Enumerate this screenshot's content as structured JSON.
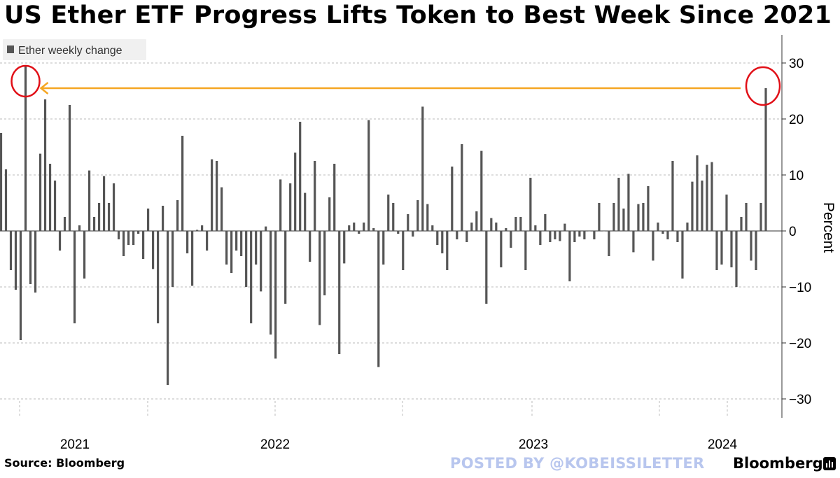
{
  "title": "US Ether ETF Progress Lifts Token to Best Week Since 2021",
  "source": "Source: Bloomberg",
  "watermark": "POSTED BY @KOBEISSILETTER",
  "brand": "Bloomberg",
  "colors": {
    "bar": "#555555",
    "grid": "#bbbbbb",
    "arrow": "#f5a623",
    "circle": "#e10f17",
    "legend_bg": "#f0f0f0",
    "watermark": "#b8c6ee"
  },
  "chart_data": {
    "type": "bar",
    "ylabel": "Percent",
    "ylim": [
      -33,
      35
    ],
    "yticks": [
      30,
      20,
      10,
      0,
      -10,
      -20,
      -30
    ],
    "grid": true,
    "legend": {
      "position": "top-left",
      "entries": [
        "Ether weekly change"
      ]
    },
    "x_axis": {
      "type": "time",
      "tick_labels": [
        "2021",
        "2022",
        "2023",
        "2024"
      ],
      "year_boundaries": [
        "2020-11",
        "2021-07",
        "2022-01",
        "2022-07",
        "2023-01",
        "2023-07",
        "2024-01"
      ]
    },
    "series": [
      {
        "name": "Ether weekly change",
        "values": [
          17.5,
          11.0,
          -7.0,
          -10.5,
          -19.5,
          29.5,
          -9.5,
          -11.0,
          13.8,
          23.5,
          12.0,
          9.0,
          -3.5,
          2.5,
          22.5,
          -16.5,
          1.0,
          -8.5,
          10.8,
          2.5,
          5.0,
          9.8,
          5.0,
          8.5,
          -1.5,
          -4.5,
          -2.5,
          -2.5,
          -0.5,
          -5.0,
          4.0,
          -6.8,
          -16.5,
          4.5,
          -27.5,
          -10.0,
          5.5,
          17.0,
          -4.0,
          -9.8,
          0.2,
          1.0,
          -3.5,
          12.8,
          12.5,
          7.8,
          -6.0,
          -7.5,
          -3.5,
          -4.5,
          -10.0,
          -16.5,
          -6.0,
          -10.8,
          0.8,
          -18.5,
          -22.8,
          9.2,
          -13.0,
          8.5,
          14.0,
          19.5,
          6.8,
          -5.5,
          12.5,
          -16.8,
          -11.5,
          6.0,
          12.0,
          -22.0,
          -5.8,
          1.0,
          1.5,
          -0.5,
          1.5,
          19.8,
          0.5,
          -24.3,
          -6.0,
          6.5,
          5.0,
          -0.5,
          -7.0,
          3.0,
          -1.0,
          5.5,
          22.2,
          4.8,
          1.0,
          -2.5,
          -4.0,
          -7.0,
          11.5,
          -1.5,
          15.5,
          -2.0,
          1.5,
          3.5,
          14.3,
          -13.0,
          2.3,
          1.5,
          -6.5,
          0.5,
          -3.0,
          2.5,
          2.5,
          -7.0,
          9.5,
          1.0,
          -2.5,
          3.0,
          -2.0,
          -1.5,
          -1.8,
          1.3,
          -9.0,
          -2.0,
          -1.0,
          -1.5,
          0.0,
          -1.5,
          5.0,
          0.0,
          -4.5,
          5.0,
          9.5,
          4.0,
          10.2,
          -3.8,
          4.8,
          5.0,
          8.0,
          -5.3,
          1.5,
          -0.5,
          -1.5,
          12.5,
          -2.0,
          -8.5,
          1.5,
          8.8,
          13.5,
          9.0,
          11.8,
          12.3,
          -7.0,
          -6.0,
          6.5,
          -6.5,
          -10.0,
          2.5,
          5.0,
          -5.3,
          -7.0,
          5.0,
          25.5
        ]
      }
    ],
    "annotations": [
      {
        "type": "circle",
        "target": "peak 2021"
      },
      {
        "type": "circle",
        "target": "latest week"
      },
      {
        "type": "arrow",
        "from": "latest week",
        "to": "peak 2021"
      }
    ]
  }
}
